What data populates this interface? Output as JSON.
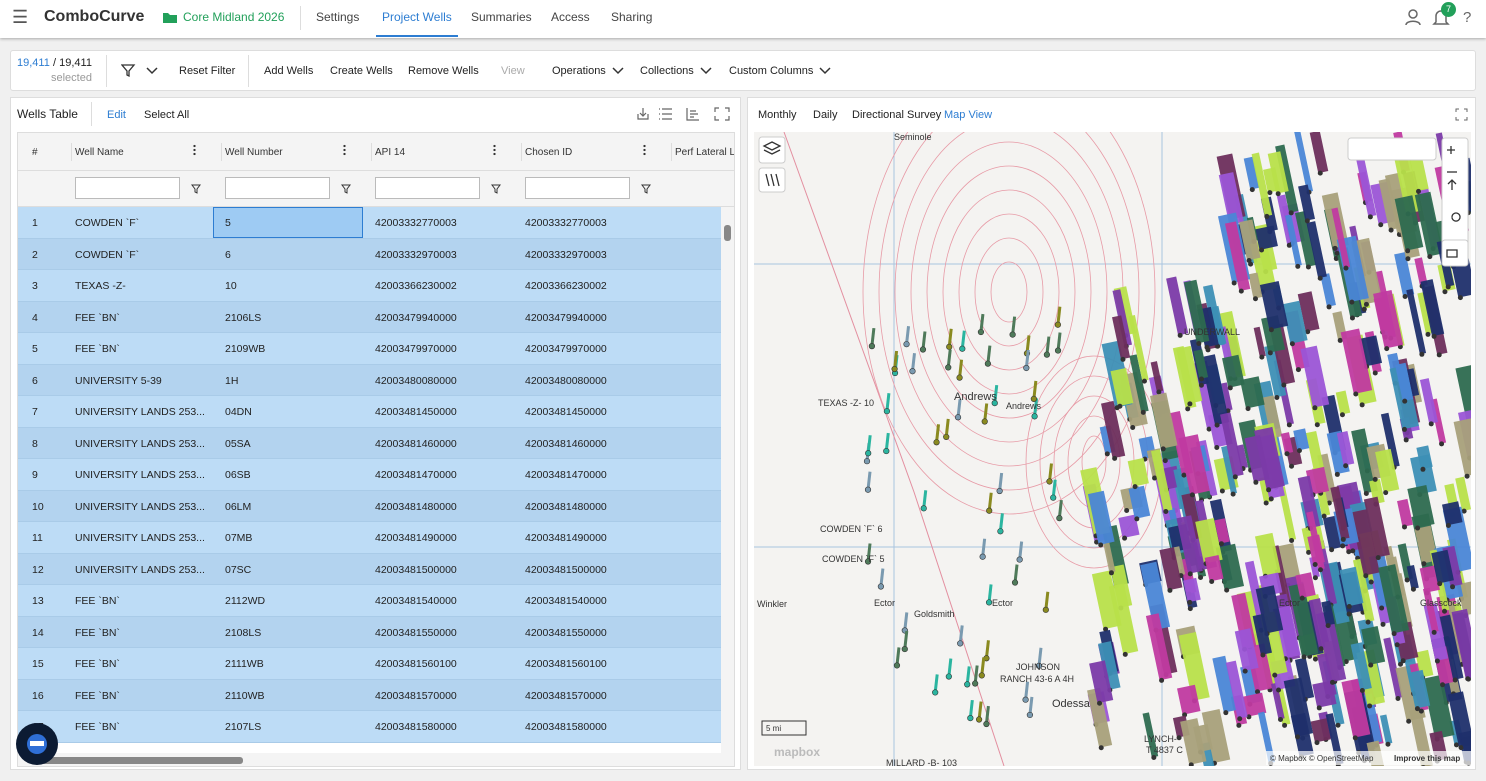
{
  "header": {
    "menu_icon": "☰",
    "app_name": "ComboCurve",
    "project": "Core Midland 2026",
    "tabs": [
      "Settings",
      "Project Wells",
      "Summaries",
      "Access",
      "Sharing"
    ],
    "active_tab": "Project Wells",
    "notification_count": "7",
    "help": "?"
  },
  "toolbar": {
    "selected": "19,411",
    "total": "/ 19,411",
    "selected_label": "selected",
    "buttons": [
      "Reset Filter",
      "Add Wells",
      "Create Wells",
      "Remove Wells",
      "View"
    ],
    "menus": [
      "Operations",
      "Collections",
      "Custom Columns"
    ]
  },
  "table": {
    "title": "Wells Table",
    "actions": [
      "Edit",
      "Select All"
    ],
    "columns": [
      "#",
      "Well Name",
      "Well Number",
      "API 14",
      "Chosen ID",
      "Perf Lateral L"
    ],
    "rows": [
      [
        "1",
        "COWDEN `F`",
        "5",
        "42003332770003",
        "42003332770003"
      ],
      [
        "2",
        "COWDEN `F`",
        "6",
        "42003332970003",
        "42003332970003"
      ],
      [
        "3",
        "TEXAS -Z-",
        "10",
        "42003366230002",
        "42003366230002"
      ],
      [
        "4",
        "FEE `BN`",
        "2106LS",
        "42003479940000",
        "42003479940000"
      ],
      [
        "5",
        "FEE `BN`",
        "2109WB",
        "42003479970000",
        "42003479970000"
      ],
      [
        "6",
        "UNIVERSITY 5-39",
        "1H",
        "42003480080000",
        "42003480080000"
      ],
      [
        "7",
        "UNIVERSITY LANDS 253...",
        "04DN",
        "42003481450000",
        "42003481450000"
      ],
      [
        "8",
        "UNIVERSITY LANDS 253...",
        "05SA",
        "42003481460000",
        "42003481460000"
      ],
      [
        "9",
        "UNIVERSITY LANDS 253...",
        "06SB",
        "42003481470000",
        "42003481470000"
      ],
      [
        "10",
        "UNIVERSITY LANDS 253...",
        "06LM",
        "42003481480000",
        "42003481480000"
      ],
      [
        "11",
        "UNIVERSITY LANDS 253...",
        "07MB",
        "42003481490000",
        "42003481490000"
      ],
      [
        "12",
        "UNIVERSITY LANDS 253...",
        "07SC",
        "42003481500000",
        "42003481500000"
      ],
      [
        "13",
        "FEE `BN`",
        "2112WD",
        "42003481540000",
        "42003481540000"
      ],
      [
        "14",
        "FEE `BN`",
        "2108LS",
        "42003481550000",
        "42003481550000"
      ],
      [
        "15",
        "FEE `BN`",
        "2111WB",
        "42003481560100",
        "42003481560100"
      ],
      [
        "16",
        "FEE `BN`",
        "2110WB",
        "42003481570000",
        "42003481570000"
      ],
      [
        "17",
        "FEE `BN`",
        "2107LS",
        "42003481580000",
        "42003481580000"
      ]
    ]
  },
  "map": {
    "tabs": [
      "Monthly",
      "Daily",
      "Directional Survey",
      "Map View"
    ],
    "active_tab": "Map View",
    "labels": [
      "Seminole",
      "TEXAS -Z- 10",
      "Andrews",
      "Andrews",
      "COWDEN `F` 6",
      "COWDEN `F` 5",
      "Winkler",
      "Ector",
      "Ector",
      "Ector",
      "Goldsmith",
      "JOHNSON",
      "RANCH 43-6 A 4H",
      "Odessa",
      "LYNCH-",
      "T 4837 C",
      "MILLARD -B- 103",
      "UNDERWALL",
      "Glasscock"
    ],
    "scale": "5 mi",
    "logo": "mapbox",
    "attribution": "© Mapbox © OpenStreetMap",
    "improve": "Improve this map"
  }
}
